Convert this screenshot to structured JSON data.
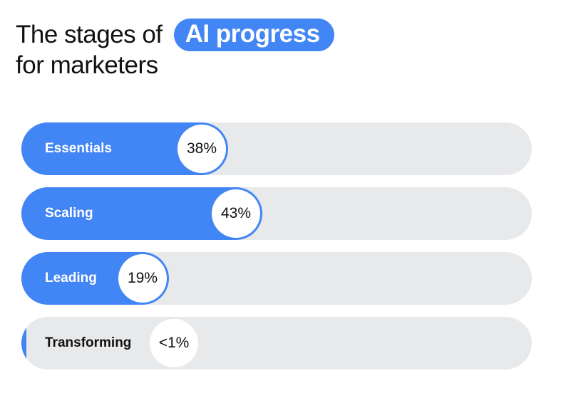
{
  "title": {
    "line1": "The stages of",
    "highlight": "AI progress",
    "line2": "for marketers"
  },
  "colors": {
    "accent": "#4285f4",
    "track": "#e8e9eb"
  },
  "chart_data": {
    "type": "bar",
    "orientation": "horizontal",
    "categories": [
      "Essentials",
      "Scaling",
      "Leading",
      "Transforming"
    ],
    "values": [
      38,
      43,
      19,
      1
    ],
    "value_labels": [
      "38%",
      "43%",
      "19%",
      "<1%"
    ],
    "unit": "%"
  }
}
